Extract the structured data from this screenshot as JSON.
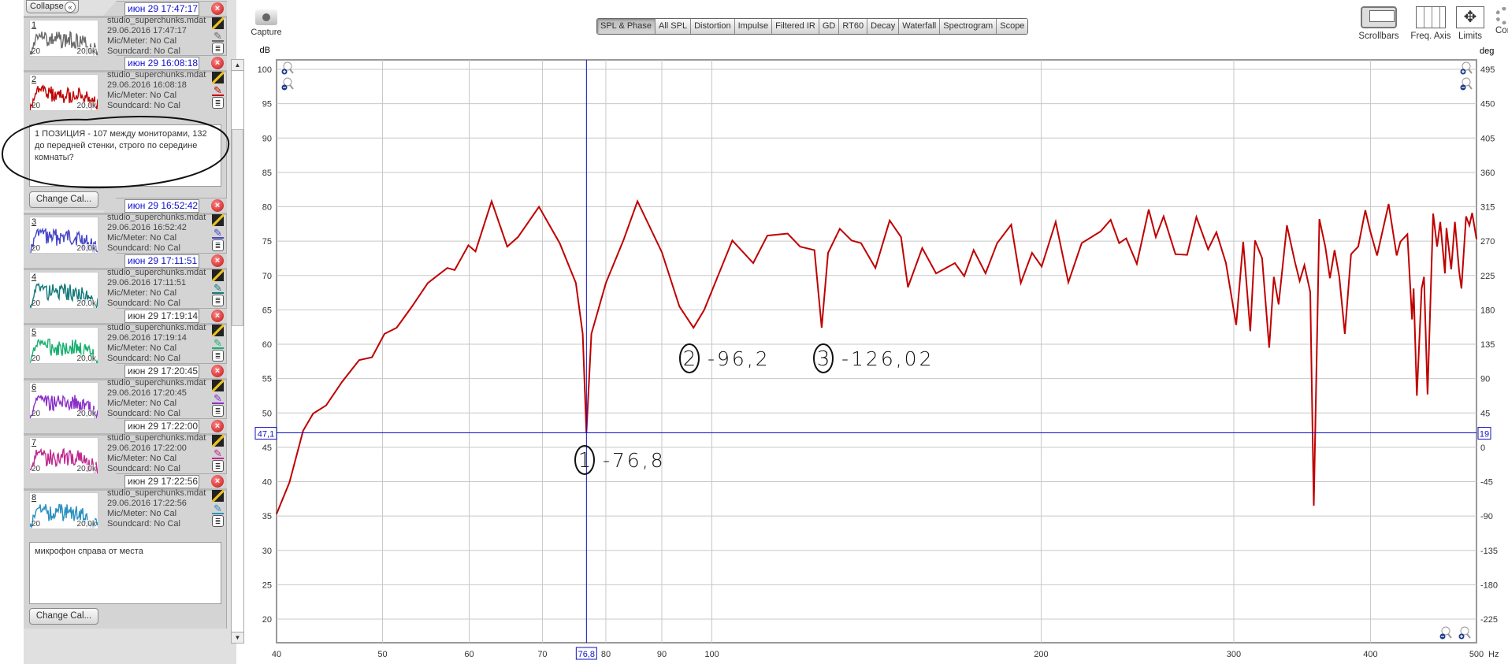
{
  "left_panel": {
    "collapse_label": "Collapse",
    "collapse_icon": "double-chevron-left-icon",
    "measurements": [
      {
        "index": "1",
        "date_box": "июн 29 17:47:17",
        "date_selected": true,
        "filename": "studio_superchunks.mdat",
        "timestamp": "29.06.2016 17:47:17",
        "mic": "Mic/Meter: No Cal",
        "soundcard": "Soundcard: No Cal",
        "color": "#6a6a6a",
        "thumb_lo": "20",
        "thumb_hi": "20,0k"
      },
      {
        "index": "2",
        "date_box": "июн 29 16:08:18",
        "date_selected": true,
        "filename": "studio_superchunks.mdat",
        "timestamp": "29.06.2016 16:08:18",
        "mic": "Mic/Meter: No Cal",
        "soundcard": "Soundcard: No Cal",
        "color": "#c00000",
        "thumb_lo": "20",
        "thumb_hi": "20,0k",
        "note": "1 ПОЗИЦИЯ - 107 между мониторами, 132 до передней стенки, строго по середине комнаты?",
        "change_cal": "Change Cal..."
      },
      {
        "index": "3",
        "date_box": "июн 29 16:52:42",
        "date_selected": true,
        "filename": "studio_superchunks.mdat",
        "timestamp": "29.06.2016 16:52:42",
        "mic": "Mic/Meter: No Cal",
        "soundcard": "Soundcard: No Cal",
        "color": "#4646c8",
        "thumb_lo": "20",
        "thumb_hi": "20,0k"
      },
      {
        "index": "4",
        "date_box": "июн 29 17:11:51",
        "date_selected": true,
        "filename": "studio_superchunks.mdat",
        "timestamp": "29.06.2016 17:11:51",
        "mic": "Mic/Meter: No Cal",
        "soundcard": "Soundcard: No Cal",
        "color": "#157a7a",
        "thumb_lo": "20",
        "thumb_hi": "20,0k"
      },
      {
        "index": "5",
        "date_box": "июн 29 17:19:14",
        "date_selected": false,
        "filename": "studio_superchunks.mdat",
        "timestamp": "29.06.2016 17:19:14",
        "mic": "Mic/Meter: No Cal",
        "soundcard": "Soundcard: No Cal",
        "color": "#18b070",
        "thumb_lo": "20",
        "thumb_hi": "20,0k"
      },
      {
        "index": "6",
        "date_box": "июн 29 17:20:45",
        "date_selected": false,
        "filename": "studio_superchunks.mdat",
        "timestamp": "29.06.2016 17:20:45",
        "mic": "Mic/Meter: No Cal",
        "soundcard": "Soundcard: No Cal",
        "color": "#8a30c8",
        "thumb_lo": "20",
        "thumb_hi": "20,0k"
      },
      {
        "index": "7",
        "date_box": "июн 29 17:22:00",
        "date_selected": false,
        "filename": "studio_superchunks.mdat",
        "timestamp": "29.06.2016 17:22:00",
        "mic": "Mic/Meter: No Cal",
        "soundcard": "Soundcard: No Cal",
        "color": "#c0288e",
        "thumb_lo": "20",
        "thumb_hi": "20,0k"
      },
      {
        "index": "8",
        "date_box": "июн 29 17:22:56",
        "date_selected": false,
        "filename": "studio_superchunks.mdat",
        "timestamp": "29.06.2016 17:22:56",
        "mic": "Mic/Meter: No Cal",
        "soundcard": "Soundcard: No Cal",
        "color": "#2a90c0",
        "thumb_lo": "20",
        "thumb_hi": "20,0k",
        "note": "микрофон справа от места",
        "change_cal": "Change Cal..."
      }
    ]
  },
  "toolbar": {
    "capture_label": "Capture",
    "tabs": [
      "SPL & Phase",
      "All SPL",
      "Distortion",
      "Impulse",
      "Filtered IR",
      "GD",
      "RT60",
      "Decay",
      "Waterfall",
      "Spectrogram",
      "Scope"
    ],
    "active_tab": "SPL & Phase",
    "right_tools": [
      {
        "label": "Scrollbars",
        "icon": "scrollbars-icon"
      },
      {
        "label": "Freq. Axis",
        "icon": "freq-axis-icon"
      },
      {
        "label": "Limits",
        "icon": "limits-arrows-icon"
      },
      {
        "label": "Con",
        "icon": "gear-icon"
      }
    ]
  },
  "chart_data": {
    "type": "line",
    "ylabel": "dB",
    "y2label": "deg",
    "xunit": "Hz",
    "xscale": "log",
    "xlim": [
      40,
      500
    ],
    "ylim": [
      20,
      100
    ],
    "y2lim": [
      -225,
      495
    ],
    "grid": true,
    "xticks": [
      "40",
      "50",
      "60",
      "70",
      "80",
      "90",
      "100",
      "200",
      "300",
      "400",
      "500"
    ],
    "yticks": [
      100,
      95,
      90,
      85,
      80,
      75,
      70,
      65,
      60,
      55,
      50,
      45,
      40,
      35,
      30,
      25,
      20
    ],
    "y2ticks": [
      495,
      450,
      405,
      360,
      315,
      270,
      225,
      180,
      135,
      90,
      45,
      0,
      -45,
      -90,
      -135,
      -180,
      -225
    ],
    "series_color": "#c00000",
    "cursor": {
      "x_label": "76,8",
      "y_label": "47,1",
      "y2_label": "19",
      "freq": 76.8,
      "db": 47.1,
      "color": "#1010c0"
    },
    "series": [
      {
        "x": [
          40,
          41.1,
          42.3,
          43.2,
          44.4,
          45.9,
          47.6,
          48.9,
          50.2,
          51.5,
          53.2,
          55.0,
          57.3,
          58.2,
          59.9,
          60.8,
          62.9,
          65.0,
          66.5,
          69.5,
          72.6,
          75.1,
          76.2,
          76.8,
          77.6,
          80.0,
          83.0,
          85.5,
          90.0,
          93.4,
          96.2,
          98.4,
          104.4,
          109.1,
          112.4,
          117.3,
          120.4,
          124.1,
          126.0,
          127.7,
          130.9,
          134.2,
          136.9,
          141.1,
          145.4,
          148.9,
          151.1,
          155.7,
          160.3,
          166.8,
          170.1,
          173.5,
          177.9,
          182.3,
          187.8,
          191.6,
          196.2,
          200.2,
          206.2,
          211.8,
          217.8,
          226.6,
          231.5,
          235.7,
          239.2,
          244.6,
          250.8,
          254.6,
          258.8,
          265.3,
          271.9,
          277.3,
          284.2,
          289.2,
          295.1,
          301.5,
          306.0,
          310.6,
          313.7,
          318.4,
          323.2,
          326.4,
          329.7,
          335.5,
          341.3,
          344.6,
          348.1,
          352.4,
          355.0,
          359.2,
          363.7,
          367.3,
          370.9,
          374.6,
          379.0,
          384.0,
          389.8,
          395.7,
          399.6,
          405.6,
          415.6,
          422.7,
          426.0,
          432.3,
          436.6,
          438.0,
          441.0,
          445.5,
          447.7,
          451.1,
          456.4,
          460.2,
          463.3,
          467.9,
          469.4,
          474.1,
          477.8,
          482.0,
          484.4,
          489.2,
          492.6,
          495.5,
          500
        ],
        "y": [
          35.3,
          39.9,
          47.4,
          49.9,
          51.1,
          54.5,
          57.7,
          58.1,
          61.5,
          62.4,
          65.5,
          68.9,
          71.1,
          70.8,
          74.4,
          73.5,
          80.8,
          74.2,
          75.6,
          80.0,
          74.7,
          68.9,
          61.5,
          47.1,
          61.5,
          68.9,
          75.1,
          80.8,
          73.4,
          65.5,
          62.4,
          65.0,
          75.1,
          71.8,
          75.8,
          76.1,
          74.2,
          73.7,
          62.4,
          73.3,
          76.8,
          75.1,
          74.7,
          71.1,
          78.0,
          75.6,
          68.3,
          74.0,
          70.3,
          71.8,
          69.9,
          73.7,
          70.3,
          74.7,
          77.4,
          68.9,
          73.3,
          71.3,
          77.8,
          69.0,
          74.7,
          76.4,
          78.1,
          74.7,
          75.4,
          71.7,
          79.6,
          75.6,
          78.6,
          73.1,
          73.0,
          78.5,
          73.8,
          76.3,
          71.8,
          62.8,
          74.9,
          61.9,
          75.1,
          72.5,
          59.5,
          69.8,
          65.8,
          77.3,
          71.9,
          69.2,
          71.5,
          67.6,
          36.5,
          78.2,
          74.2,
          69.6,
          73.7,
          69.8,
          61.5,
          73.1,
          74.2,
          79.5,
          76.6,
          72.9,
          80.4,
          72.9,
          74.9,
          76.0,
          63.6,
          68.1,
          52.5,
          68.1,
          69.8,
          52.7,
          79.0,
          74.2,
          77.8,
          70.3,
          76.9,
          70.9,
          77.8,
          70.7,
          68.1,
          78.6,
          77.3,
          79.1,
          75.3
        ]
      }
    ],
    "annotations": [
      {
        "marker": "1",
        "text": "-76,8"
      },
      {
        "marker": "2",
        "text": "-96,2"
      },
      {
        "marker": "3",
        "text": "-126,02"
      }
    ]
  }
}
